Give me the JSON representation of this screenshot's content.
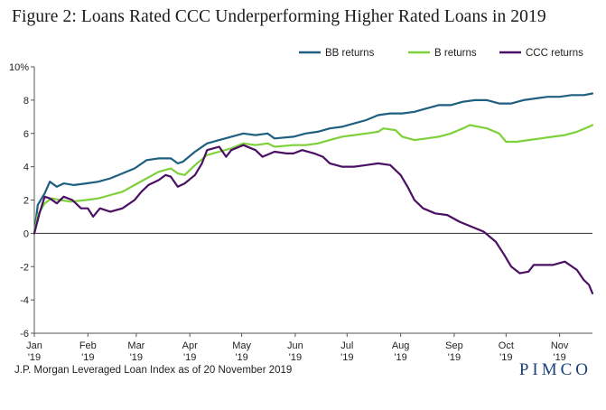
{
  "figure": {
    "title": "Figure 2: Loans Rated CCC Underperforming Higher Rated Loans in 2019",
    "source": "J.P. Morgan Leveraged Loan Index as of 20 November 2019",
    "logo_text": "PIMCO"
  },
  "chart_data": {
    "type": "line",
    "title": "Figure 2: Loans Rated CCC Underperforming Higher Rated Loans in 2019",
    "xlabel": "",
    "ylabel": "",
    "x_ticks": [
      {
        "date": "2019-01-01",
        "line1": "Jan",
        "line2": "'19"
      },
      {
        "date": "2019-02-01",
        "line1": "Feb",
        "line2": "'19"
      },
      {
        "date": "2019-03-01",
        "line1": "Mar",
        "line2": "'19"
      },
      {
        "date": "2019-04-01",
        "line1": "Apr",
        "line2": "'19"
      },
      {
        "date": "2019-05-01",
        "line1": "May",
        "line2": "'19"
      },
      {
        "date": "2019-06-01",
        "line1": "Jun",
        "line2": "'19"
      },
      {
        "date": "2019-07-01",
        "line1": "Jul",
        "line2": "'19"
      },
      {
        "date": "2019-08-01",
        "line1": "Aug",
        "line2": "'19"
      },
      {
        "date": "2019-09-01",
        "line1": "Sep",
        "line2": "'19"
      },
      {
        "date": "2019-10-01",
        "line1": "Oct",
        "line2": "'19"
      },
      {
        "date": "2019-11-01",
        "line1": "Nov",
        "line2": "'19"
      }
    ],
    "y_ticks": [
      {
        "value": 10,
        "label": "10%"
      },
      {
        "value": 8,
        "label": "8"
      },
      {
        "value": 6,
        "label": "6"
      },
      {
        "value": 4,
        "label": "4"
      },
      {
        "value": 2,
        "label": "2"
      },
      {
        "value": 0,
        "label": "0"
      },
      {
        "value": -2,
        "label": "-2"
      },
      {
        "value": -4,
        "label": "-4"
      },
      {
        "value": -6,
        "label": "-6"
      }
    ],
    "xlim": [
      "2019-01-01",
      "2019-11-20"
    ],
    "ylim": [
      -6,
      10
    ],
    "grid": false,
    "zero_line": true,
    "legend_position": "top-right",
    "series": [
      {
        "name": "BB returns",
        "color": "#1f5f80",
        "points": [
          [
            "2019-01-01",
            0
          ],
          [
            "2019-01-03",
            1.7
          ],
          [
            "2019-01-07",
            2.4
          ],
          [
            "2019-01-10",
            3.1
          ],
          [
            "2019-01-14",
            2.8
          ],
          [
            "2019-01-18",
            3.0
          ],
          [
            "2019-01-24",
            2.9
          ],
          [
            "2019-01-31",
            3.0
          ],
          [
            "2019-02-07",
            3.1
          ],
          [
            "2019-02-14",
            3.3
          ],
          [
            "2019-02-21",
            3.6
          ],
          [
            "2019-02-28",
            3.9
          ],
          [
            "2019-03-07",
            4.4
          ],
          [
            "2019-03-14",
            4.5
          ],
          [
            "2019-03-21",
            4.5
          ],
          [
            "2019-03-25",
            4.2
          ],
          [
            "2019-03-28",
            4.3
          ],
          [
            "2019-04-04",
            4.9
          ],
          [
            "2019-04-11",
            5.4
          ],
          [
            "2019-04-18",
            5.6
          ],
          [
            "2019-04-25",
            5.8
          ],
          [
            "2019-05-02",
            6.0
          ],
          [
            "2019-05-09",
            5.9
          ],
          [
            "2019-05-16",
            6.0
          ],
          [
            "2019-05-20",
            5.7
          ],
          [
            "2019-05-31",
            5.8
          ],
          [
            "2019-06-07",
            6.0
          ],
          [
            "2019-06-14",
            6.1
          ],
          [
            "2019-06-21",
            6.3
          ],
          [
            "2019-06-28",
            6.4
          ],
          [
            "2019-07-05",
            6.6
          ],
          [
            "2019-07-12",
            6.8
          ],
          [
            "2019-07-19",
            7.1
          ],
          [
            "2019-07-26",
            7.2
          ],
          [
            "2019-08-02",
            7.2
          ],
          [
            "2019-08-09",
            7.3
          ],
          [
            "2019-08-16",
            7.5
          ],
          [
            "2019-08-23",
            7.7
          ],
          [
            "2019-08-30",
            7.7
          ],
          [
            "2019-09-06",
            7.9
          ],
          [
            "2019-09-13",
            8.0
          ],
          [
            "2019-09-20",
            8.0
          ],
          [
            "2019-09-27",
            7.8
          ],
          [
            "2019-10-04",
            7.8
          ],
          [
            "2019-10-11",
            8.0
          ],
          [
            "2019-10-18",
            8.1
          ],
          [
            "2019-10-25",
            8.2
          ],
          [
            "2019-11-01",
            8.2
          ],
          [
            "2019-11-08",
            8.3
          ],
          [
            "2019-11-15",
            8.3
          ],
          [
            "2019-11-20",
            8.4
          ]
        ]
      },
      {
        "name": "B returns",
        "color": "#7fd13b",
        "points": [
          [
            "2019-01-01",
            0
          ],
          [
            "2019-01-03",
            1.1
          ],
          [
            "2019-01-07",
            1.8
          ],
          [
            "2019-01-11",
            2.1
          ],
          [
            "2019-01-16",
            2.0
          ],
          [
            "2019-01-22",
            1.9
          ],
          [
            "2019-01-31",
            2.0
          ],
          [
            "2019-02-07",
            2.1
          ],
          [
            "2019-02-14",
            2.3
          ],
          [
            "2019-02-21",
            2.5
          ],
          [
            "2019-02-28",
            2.9
          ],
          [
            "2019-03-07",
            3.3
          ],
          [
            "2019-03-14",
            3.7
          ],
          [
            "2019-03-21",
            3.9
          ],
          [
            "2019-03-25",
            3.6
          ],
          [
            "2019-03-29",
            3.5
          ],
          [
            "2019-04-04",
            4.1
          ],
          [
            "2019-04-11",
            4.7
          ],
          [
            "2019-04-18",
            4.9
          ],
          [
            "2019-04-25",
            5.1
          ],
          [
            "2019-05-02",
            5.4
          ],
          [
            "2019-05-09",
            5.3
          ],
          [
            "2019-05-16",
            5.4
          ],
          [
            "2019-05-20",
            5.2
          ],
          [
            "2019-05-31",
            5.3
          ],
          [
            "2019-06-07",
            5.3
          ],
          [
            "2019-06-14",
            5.4
          ],
          [
            "2019-06-21",
            5.6
          ],
          [
            "2019-06-28",
            5.8
          ],
          [
            "2019-07-05",
            5.9
          ],
          [
            "2019-07-12",
            6.0
          ],
          [
            "2019-07-19",
            6.1
          ],
          [
            "2019-07-22",
            6.3
          ],
          [
            "2019-07-29",
            6.2
          ],
          [
            "2019-08-02",
            5.8
          ],
          [
            "2019-08-09",
            5.6
          ],
          [
            "2019-08-16",
            5.7
          ],
          [
            "2019-08-23",
            5.8
          ],
          [
            "2019-08-30",
            6.0
          ],
          [
            "2019-09-06",
            6.3
          ],
          [
            "2019-09-10",
            6.5
          ],
          [
            "2019-09-20",
            6.3
          ],
          [
            "2019-09-27",
            6.0
          ],
          [
            "2019-10-01",
            5.5
          ],
          [
            "2019-10-07",
            5.5
          ],
          [
            "2019-10-14",
            5.6
          ],
          [
            "2019-10-21",
            5.7
          ],
          [
            "2019-10-28",
            5.8
          ],
          [
            "2019-11-04",
            5.9
          ],
          [
            "2019-11-11",
            6.1
          ],
          [
            "2019-11-18",
            6.4
          ],
          [
            "2019-11-20",
            6.5
          ]
        ]
      },
      {
        "name": "CCC returns",
        "color": "#4b0f63",
        "points": [
          [
            "2019-01-01",
            0
          ],
          [
            "2019-01-04",
            1.2
          ],
          [
            "2019-01-07",
            2.2
          ],
          [
            "2019-01-10",
            2.1
          ],
          [
            "2019-01-14",
            1.8
          ],
          [
            "2019-01-18",
            2.2
          ],
          [
            "2019-01-23",
            2.0
          ],
          [
            "2019-01-28",
            1.5
          ],
          [
            "2019-02-01",
            1.5
          ],
          [
            "2019-02-04",
            1.0
          ],
          [
            "2019-02-08",
            1.5
          ],
          [
            "2019-02-14",
            1.3
          ],
          [
            "2019-02-21",
            1.5
          ],
          [
            "2019-02-28",
            2.0
          ],
          [
            "2019-03-04",
            2.5
          ],
          [
            "2019-03-08",
            2.9
          ],
          [
            "2019-03-14",
            3.2
          ],
          [
            "2019-03-18",
            3.5
          ],
          [
            "2019-03-21",
            3.4
          ],
          [
            "2019-03-25",
            2.8
          ],
          [
            "2019-03-29",
            3.0
          ],
          [
            "2019-04-04",
            3.5
          ],
          [
            "2019-04-08",
            4.2
          ],
          [
            "2019-04-11",
            5.0
          ],
          [
            "2019-04-18",
            5.2
          ],
          [
            "2019-04-22",
            4.6
          ],
          [
            "2019-04-25",
            5.0
          ],
          [
            "2019-05-02",
            5.3
          ],
          [
            "2019-05-09",
            5.0
          ],
          [
            "2019-05-13",
            4.6
          ],
          [
            "2019-05-20",
            4.9
          ],
          [
            "2019-05-27",
            4.8
          ],
          [
            "2019-05-31",
            4.8
          ],
          [
            "2019-06-05",
            5.0
          ],
          [
            "2019-06-12",
            4.8
          ],
          [
            "2019-06-17",
            4.6
          ],
          [
            "2019-06-21",
            4.2
          ],
          [
            "2019-06-28",
            4.0
          ],
          [
            "2019-07-05",
            4.0
          ],
          [
            "2019-07-12",
            4.1
          ],
          [
            "2019-07-19",
            4.2
          ],
          [
            "2019-07-26",
            4.1
          ],
          [
            "2019-08-01",
            3.5
          ],
          [
            "2019-08-05",
            2.8
          ],
          [
            "2019-08-09",
            2.0
          ],
          [
            "2019-08-14",
            1.5
          ],
          [
            "2019-08-21",
            1.2
          ],
          [
            "2019-08-28",
            1.1
          ],
          [
            "2019-09-04",
            0.7
          ],
          [
            "2019-09-11",
            0.4
          ],
          [
            "2019-09-18",
            0.1
          ],
          [
            "2019-09-25",
            -0.5
          ],
          [
            "2019-09-30",
            -1.3
          ],
          [
            "2019-10-04",
            -2.0
          ],
          [
            "2019-10-09",
            -2.4
          ],
          [
            "2019-10-14",
            -2.3
          ],
          [
            "2019-10-17",
            -1.9
          ],
          [
            "2019-10-22",
            -1.9
          ],
          [
            "2019-10-28",
            -1.9
          ],
          [
            "2019-11-04",
            -1.7
          ],
          [
            "2019-11-11",
            -2.2
          ],
          [
            "2019-11-15",
            -2.8
          ],
          [
            "2019-11-18",
            -3.1
          ],
          [
            "2019-11-20",
            -3.6
          ]
        ]
      }
    ]
  }
}
